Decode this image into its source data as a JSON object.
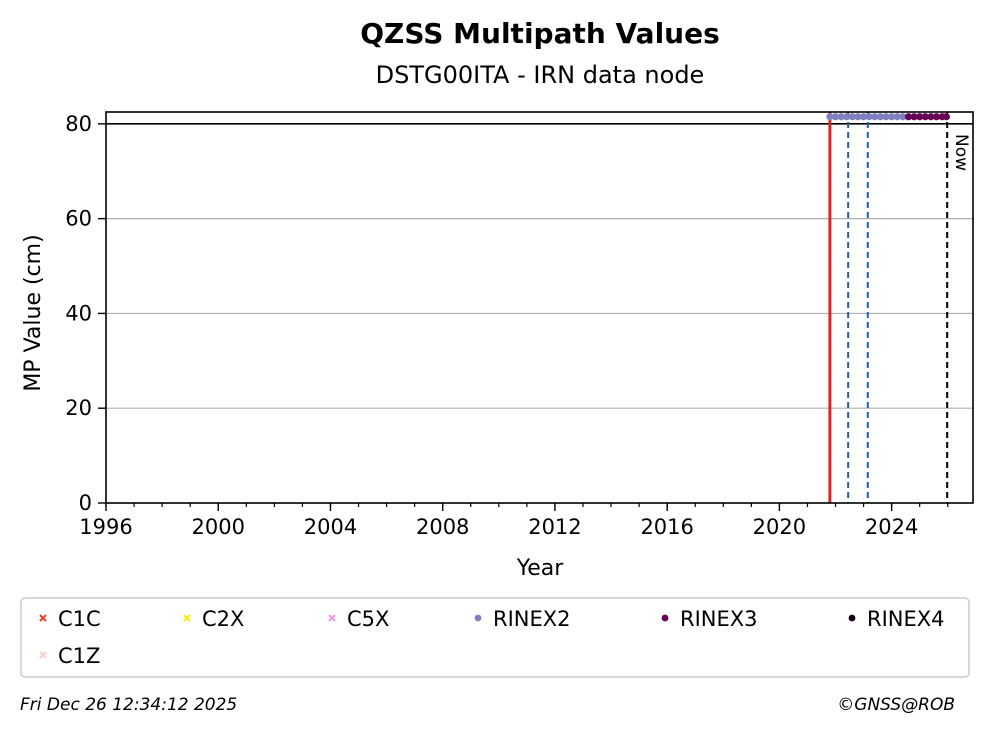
{
  "chart_data": {
    "type": "scatter",
    "title": "QZSS Multipath Values",
    "subtitle": "DSTG00ITA - IRN data node",
    "xlabel": "Year",
    "ylabel": "MP Value (cm)",
    "xlim": [
      1996.0,
      2026.9
    ],
    "ylim": [
      0,
      82.5
    ],
    "x_ticks": [
      1996,
      2000,
      2004,
      2008,
      2012,
      2016,
      2020,
      2024
    ],
    "x_tick_labels": [
      "1996",
      "2000",
      "2004",
      "2008",
      "2012",
      "2016",
      "2020",
      "2024"
    ],
    "y_ticks": [
      0,
      20,
      40,
      60,
      80
    ],
    "y_tick_labels": [
      "0",
      "20",
      "40",
      "60",
      "80"
    ],
    "grid": "horizontal",
    "reference_line": {
      "y": 80,
      "color": "#000000"
    },
    "vertical_lines": [
      {
        "x": 2021.8,
        "color": "#2ca02c",
        "style": "dashed"
      },
      {
        "x": 2021.8,
        "color": "#d62728",
        "style": "solid"
      },
      {
        "x": 2022.45,
        "color": "#1f5fa8",
        "style": "dashed"
      },
      {
        "x": 2023.15,
        "color": "#1f5fa8",
        "style": "dashed"
      },
      {
        "x": 2025.98,
        "color": "#000000",
        "style": "dashed",
        "label": "Now"
      }
    ],
    "series": [
      {
        "name": "C1C",
        "marker": "x",
        "color": "#e8432c",
        "x": [],
        "y": []
      },
      {
        "name": "C2X",
        "marker": "x",
        "color": "#ffee00",
        "x": [],
        "y": []
      },
      {
        "name": "C5X",
        "marker": "x",
        "color": "#ee99ee",
        "x": [],
        "y": []
      },
      {
        "name": "RINEX2",
        "marker": "circle",
        "color": "#8080c0",
        "x": [
          2021.8,
          2022.0,
          2022.2,
          2022.4,
          2022.6,
          2022.8,
          2023.0,
          2023.2,
          2023.4,
          2023.6,
          2023.8,
          2024.0,
          2024.2,
          2024.4
        ],
        "y": [
          81.5,
          81.5,
          81.5,
          81.5,
          81.5,
          81.5,
          81.5,
          81.5,
          81.5,
          81.5,
          81.5,
          81.5,
          81.5,
          81.5
        ]
      },
      {
        "name": "RINEX3",
        "marker": "circle",
        "color": "#660055",
        "x": [
          2024.6,
          2024.8,
          2025.0,
          2025.2,
          2025.4,
          2025.6,
          2025.8,
          2025.95
        ],
        "y": [
          81.5,
          81.5,
          81.5,
          81.5,
          81.5,
          81.5,
          81.5,
          81.5
        ]
      },
      {
        "name": "RINEX4",
        "marker": "circle",
        "color": "#150015",
        "x": [],
        "y": []
      },
      {
        "name": "C1Z",
        "marker": "x",
        "color": "#f8d0c8",
        "x": [],
        "y": []
      }
    ],
    "legend_position": "bottom"
  },
  "footer": {
    "timestamp": "Fri Dec 26 12:34:12 2025",
    "credit": "©GNSS@ROB"
  }
}
